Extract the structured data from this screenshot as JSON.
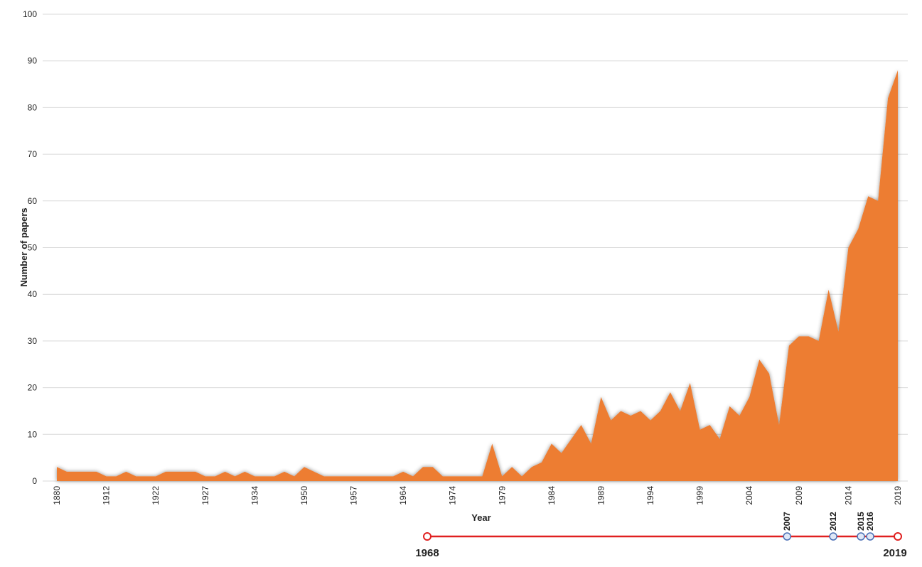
{
  "chart_data": {
    "type": "area",
    "x_label": "Year",
    "y_label": "Number of papers",
    "categories": [
      "1880",
      null,
      null,
      null,
      null,
      "1912",
      null,
      null,
      null,
      null,
      "1922",
      null,
      null,
      null,
      null,
      "1927",
      null,
      null,
      null,
      null,
      "1934",
      null,
      null,
      null,
      null,
      "1950",
      null,
      null,
      null,
      null,
      "1957",
      null,
      null,
      null,
      null,
      "1964",
      null,
      null,
      null,
      null,
      "1974",
      null,
      null,
      null,
      null,
      "1979",
      null,
      null,
      null,
      null,
      "1984",
      null,
      null,
      null,
      null,
      "1989",
      null,
      null,
      null,
      null,
      "1994",
      null,
      null,
      null,
      null,
      "1999",
      null,
      null,
      null,
      null,
      "2004",
      null,
      null,
      null,
      null,
      "2009",
      null,
      null,
      null,
      null,
      "2014",
      null,
      null,
      null,
      null,
      "2019"
    ],
    "values": [
      3,
      2,
      2,
      2,
      2,
      1,
      1,
      2,
      1,
      1,
      1,
      2,
      2,
      2,
      2,
      1,
      1,
      2,
      1,
      2,
      1,
      1,
      1,
      2,
      1,
      3,
      2,
      1,
      1,
      1,
      1,
      1,
      1,
      1,
      1,
      2,
      1,
      3,
      3,
      1,
      1,
      1,
      1,
      1,
      8,
      1,
      3,
      1,
      3,
      4,
      8,
      6,
      9,
      12,
      8,
      18,
      13,
      15,
      14,
      15,
      13,
      15,
      19,
      15,
      21,
      11,
      12,
      9,
      16,
      14,
      18,
      26,
      23,
      12,
      29,
      31,
      31,
      30,
      41,
      32,
      50,
      54,
      61,
      60,
      82,
      88
    ],
    "color": "#ed7d31",
    "ylim": [
      0,
      100
    ],
    "yticks": [
      0,
      10,
      20,
      30,
      40,
      50,
      60,
      70,
      80,
      90,
      100
    ],
    "grid": true
  },
  "timeline": {
    "start": 1968,
    "end": 2019,
    "markers": [
      2007,
      2012,
      2015,
      2016
    ]
  }
}
